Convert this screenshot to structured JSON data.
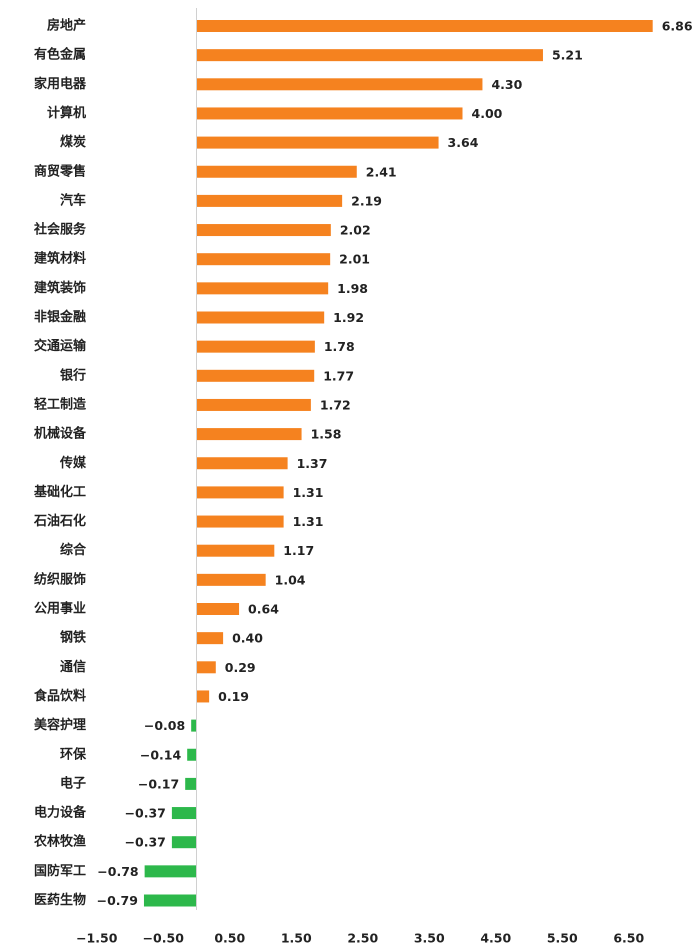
{
  "chart_data": {
    "type": "bar",
    "orientation": "horizontal",
    "categories": [
      "房地产",
      "有色金属",
      "家用电器",
      "计算机",
      "煤炭",
      "商贸零售",
      "汽车",
      "社会服务",
      "建筑材料",
      "建筑装饰",
      "非银金融",
      "交通运输",
      "银行",
      "轻工制造",
      "机械设备",
      "传媒",
      "基础化工",
      "石油石化",
      "综合",
      "纺织服饰",
      "公用事业",
      "钢铁",
      "通信",
      "食品饮料",
      "美容护理",
      "环保",
      "电子",
      "电力设备",
      "农林牧渔",
      "国防军工",
      "医药生物"
    ],
    "values": [
      6.86,
      5.21,
      4.3,
      4.0,
      3.64,
      2.41,
      2.19,
      2.02,
      2.01,
      1.98,
      1.92,
      1.78,
      1.77,
      1.72,
      1.58,
      1.37,
      1.31,
      1.31,
      1.17,
      1.04,
      0.64,
      0.4,
      0.29,
      0.19,
      -0.08,
      -0.14,
      -0.17,
      -0.37,
      -0.37,
      -0.78,
      -0.79
    ],
    "value_labels": [
      "6.86",
      "5.21",
      "4.30",
      "4.00",
      "3.64",
      "2.41",
      "2.19",
      "2.02",
      "2.01",
      "1.98",
      "1.92",
      "1.78",
      "1.77",
      "1.72",
      "1.58",
      "1.37",
      "1.31",
      "1.31",
      "1.17",
      "1.04",
      "0.64",
      "0.40",
      "0.29",
      "0.19",
      "−0.08",
      "−0.14",
      "−0.17",
      "−0.37",
      "−0.37",
      "−0.78",
      "−0.79"
    ],
    "xticks": [
      -1.5,
      -0.5,
      0.5,
      1.5,
      2.5,
      3.5,
      4.5,
      5.5,
      6.5
    ],
    "xtick_labels": [
      "−1.50",
      "−0.50",
      "0.50",
      "1.50",
      "2.50",
      "3.50",
      "4.50",
      "5.50",
      "6.50"
    ],
    "xlim": [
      -1.5,
      7.0
    ],
    "grid": false,
    "title": "",
    "xlabel": "",
    "ylabel": "",
    "colors": {
      "positive": "#F5821F",
      "negative": "#2DB84B",
      "zero_line": "#d0d0d0",
      "text": "#222222"
    }
  }
}
